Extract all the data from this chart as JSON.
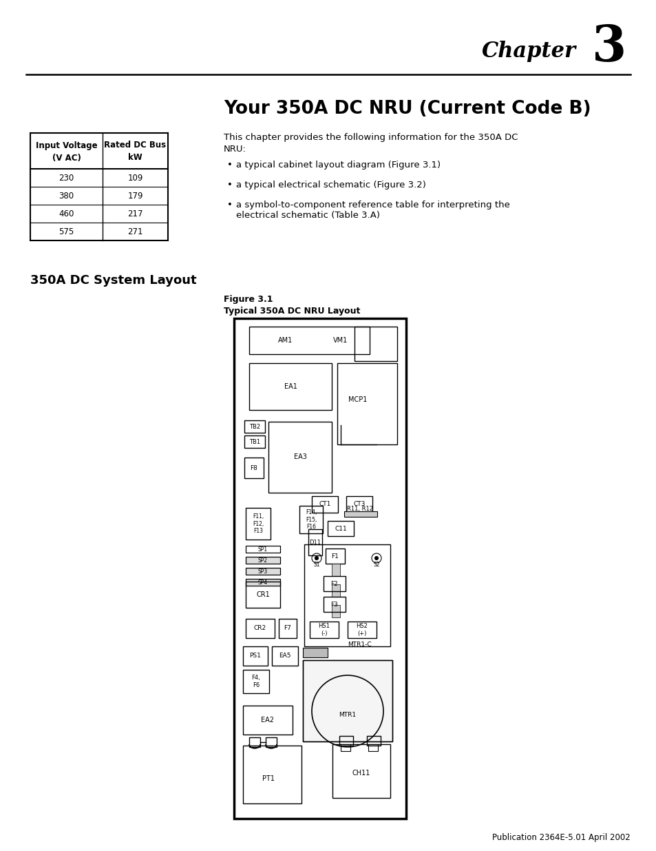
{
  "page_bg": "#ffffff",
  "chapter_label": "Chapter",
  "chapter_number": "3",
  "title": "Your 350A DC NRU (Current Code B)",
  "section_title": "350A DC System Layout",
  "intro_text_1": "This chapter provides the following information for the 350A DC",
  "intro_text_2": "NRU:",
  "bullets": [
    "a typical cabinet layout diagram (Figure 3.1)",
    "a typical electrical schematic (Figure 3.2)",
    "a symbol-to-component reference table for interpreting the\nelectrical schematic (Table 3.A)"
  ],
  "table_headers_1": "Input Voltage",
  "table_headers_2": "(V AC)",
  "table_headers_3": "Rated DC Bus",
  "table_headers_4": "kW",
  "table_data": [
    [
      "230",
      "109"
    ],
    [
      "380",
      "179"
    ],
    [
      "460",
      "217"
    ],
    [
      "575",
      "271"
    ]
  ],
  "figure_label": "Figure 3.1",
  "figure_title": "Typical 350A DC NRU Layout",
  "footer_text": "Publication 2364E-5.01 April 2002"
}
